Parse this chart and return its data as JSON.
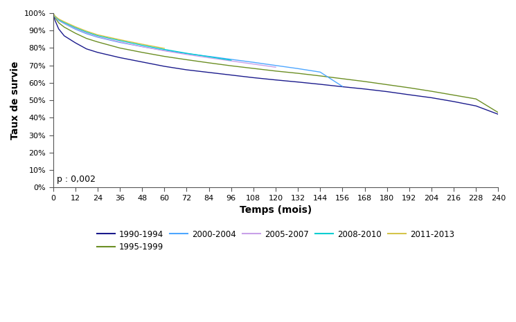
{
  "title": "",
  "xlabel": "Temps (mois)",
  "ylabel": "Taux de survie",
  "pvalue_text": "p : 0,002",
  "xlim": [
    0,
    240
  ],
  "ylim": [
    0,
    1.0
  ],
  "xticks": [
    0,
    12,
    24,
    36,
    48,
    60,
    72,
    84,
    96,
    108,
    120,
    132,
    144,
    156,
    168,
    180,
    192,
    204,
    216,
    228,
    240
  ],
  "yticks": [
    0.0,
    0.1,
    0.2,
    0.3,
    0.4,
    0.5,
    0.6,
    0.7,
    0.8,
    0.9,
    1.0
  ],
  "series": [
    {
      "label": "1990-1994",
      "color": "#1a1a8c",
      "x": [
        0,
        1,
        3,
        6,
        12,
        18,
        24,
        36,
        48,
        60,
        72,
        84,
        96,
        108,
        120,
        132,
        144,
        156,
        168,
        180,
        192,
        204,
        216,
        228,
        240
      ],
      "y": [
        1.0,
        0.96,
        0.91,
        0.87,
        0.83,
        0.795,
        0.775,
        0.745,
        0.72,
        0.695,
        0.675,
        0.66,
        0.645,
        0.63,
        0.617,
        0.605,
        0.592,
        0.578,
        0.565,
        0.55,
        0.532,
        0.515,
        0.493,
        0.468,
        0.42
      ]
    },
    {
      "label": "1995-1999",
      "color": "#6b8e23",
      "x": [
        0,
        1,
        3,
        6,
        12,
        18,
        24,
        36,
        48,
        60,
        72,
        84,
        96,
        108,
        120,
        132,
        144,
        156,
        168,
        180,
        192,
        204,
        216,
        228,
        240
      ],
      "y": [
        1.0,
        0.975,
        0.945,
        0.92,
        0.885,
        0.855,
        0.835,
        0.8,
        0.775,
        0.752,
        0.733,
        0.715,
        0.698,
        0.683,
        0.668,
        0.655,
        0.64,
        0.624,
        0.608,
        0.59,
        0.572,
        0.552,
        0.53,
        0.508,
        0.43
      ]
    },
    {
      "label": "2000-2004",
      "color": "#4da6ff",
      "x": [
        0,
        1,
        3,
        6,
        12,
        18,
        24,
        36,
        48,
        60,
        72,
        84,
        96,
        108,
        120,
        132,
        144,
        156
      ],
      "y": [
        1.0,
        0.98,
        0.958,
        0.94,
        0.908,
        0.882,
        0.862,
        0.832,
        0.808,
        0.786,
        0.768,
        0.752,
        0.735,
        0.718,
        0.7,
        0.682,
        0.662,
        0.58
      ]
    },
    {
      "label": "2005-2007",
      "color": "#c8a0e8",
      "x": [
        0,
        1,
        3,
        6,
        12,
        18,
        24,
        36,
        48,
        60,
        72,
        84,
        96,
        108,
        120
      ],
      "y": [
        1.0,
        0.98,
        0.96,
        0.942,
        0.912,
        0.886,
        0.865,
        0.835,
        0.808,
        0.784,
        0.763,
        0.744,
        0.726,
        0.708,
        0.69
      ]
    },
    {
      "label": "2008-2010",
      "color": "#00ced1",
      "x": [
        0,
        1,
        3,
        6,
        12,
        18,
        24,
        36,
        48,
        60,
        72,
        84,
        96
      ],
      "y": [
        1.0,
        0.982,
        0.963,
        0.946,
        0.917,
        0.892,
        0.871,
        0.843,
        0.816,
        0.792,
        0.77,
        0.75,
        0.73
      ]
    },
    {
      "label": "2011-2013",
      "color": "#d4c44a",
      "x": [
        0,
        1,
        3,
        6,
        12,
        18,
        24,
        36,
        48,
        60
      ],
      "y": [
        1.0,
        0.984,
        0.967,
        0.951,
        0.922,
        0.897,
        0.876,
        0.848,
        0.822,
        0.798
      ]
    }
  ],
  "legend_order": [
    0,
    1,
    2,
    3,
    4,
    5
  ],
  "legend_ncol": 5,
  "background_color": "#ffffff",
  "axis_color": "#000000",
  "linewidth": 1.0
}
